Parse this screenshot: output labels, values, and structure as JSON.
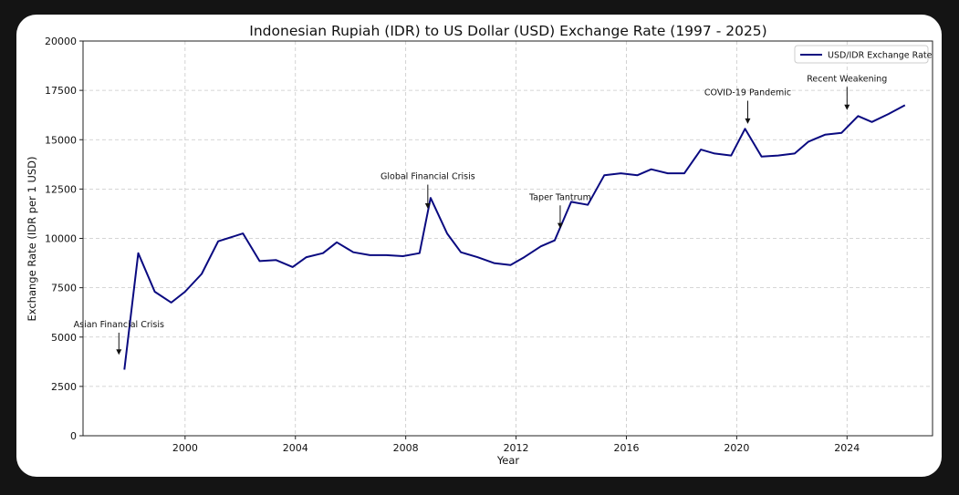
{
  "chart_data": {
    "type": "line",
    "title": "Indonesian Rupiah (IDR) to US Dollar (USD) Exchange Rate (1997 - 2025)",
    "xlabel": "Year",
    "ylabel": "Exchange Rate (IDR per 1 USD)",
    "xlim": [
      1996.3,
      2027.1
    ],
    "ylim": [
      0,
      20000
    ],
    "xticks": [
      2000,
      2004,
      2008,
      2012,
      2016,
      2020,
      2024
    ],
    "yticks": [
      0,
      2500,
      5000,
      7500,
      10000,
      12500,
      15000,
      17500,
      20000
    ],
    "grid": true,
    "legend_position": "top-right",
    "series": [
      {
        "name": "USD/IDR Exchange Rate",
        "color": "#0a0a80",
        "x": [
          1997.8,
          1998.3,
          1998.9,
          1999.5,
          2000.0,
          2000.6,
          2001.2,
          2002.1,
          2002.7,
          2003.3,
          2003.9,
          2004.4,
          2005.0,
          2005.5,
          2006.1,
          2006.7,
          2007.3,
          2007.9,
          2008.5,
          2008.9,
          2009.5,
          2010.0,
          2010.6,
          2011.2,
          2011.8,
          2012.3,
          2012.9,
          2013.4,
          2014.0,
          2014.6,
          2015.2,
          2015.8,
          2016.4,
          2016.9,
          2017.5,
          2018.1,
          2018.7,
          2019.2,
          2019.8,
          2020.3,
          2020.9,
          2021.5,
          2022.1,
          2022.6,
          2023.2,
          2023.8,
          2024.4,
          2024.9,
          2025.5,
          2026.1
        ],
        "values": [
          3350,
          9250,
          7300,
          6750,
          7300,
          8200,
          9850,
          10250,
          8850,
          8900,
          8550,
          9050,
          9250,
          9800,
          9300,
          9150,
          9150,
          9100,
          9250,
          12050,
          10250,
          9300,
          9050,
          8750,
          8650,
          9050,
          9600,
          9900,
          11850,
          11700,
          13200,
          13300,
          13200,
          13500,
          13300,
          13300,
          14500,
          14300,
          14200,
          15550,
          14150,
          14200,
          14300,
          14900,
          15250,
          15350,
          16200,
          15900,
          16300,
          16750
        ]
      }
    ],
    "annotations": [
      {
        "text": "Asian Financial Crisis",
        "x": 1997.6,
        "y": 4100,
        "text_y": 5500
      },
      {
        "text": "Global Financial Crisis",
        "x": 2008.8,
        "y": 11500,
        "text_y": 13000
      },
      {
        "text": "Taper Tantrum",
        "x": 2013.6,
        "y": 10500,
        "text_y": 11950
      },
      {
        "text": "COVID-19 Pandemic",
        "x": 2020.4,
        "y": 15800,
        "text_y": 17250
      },
      {
        "text": "Recent Weakening",
        "x": 2024.0,
        "y": 16500,
        "text_y": 17950
      }
    ]
  }
}
